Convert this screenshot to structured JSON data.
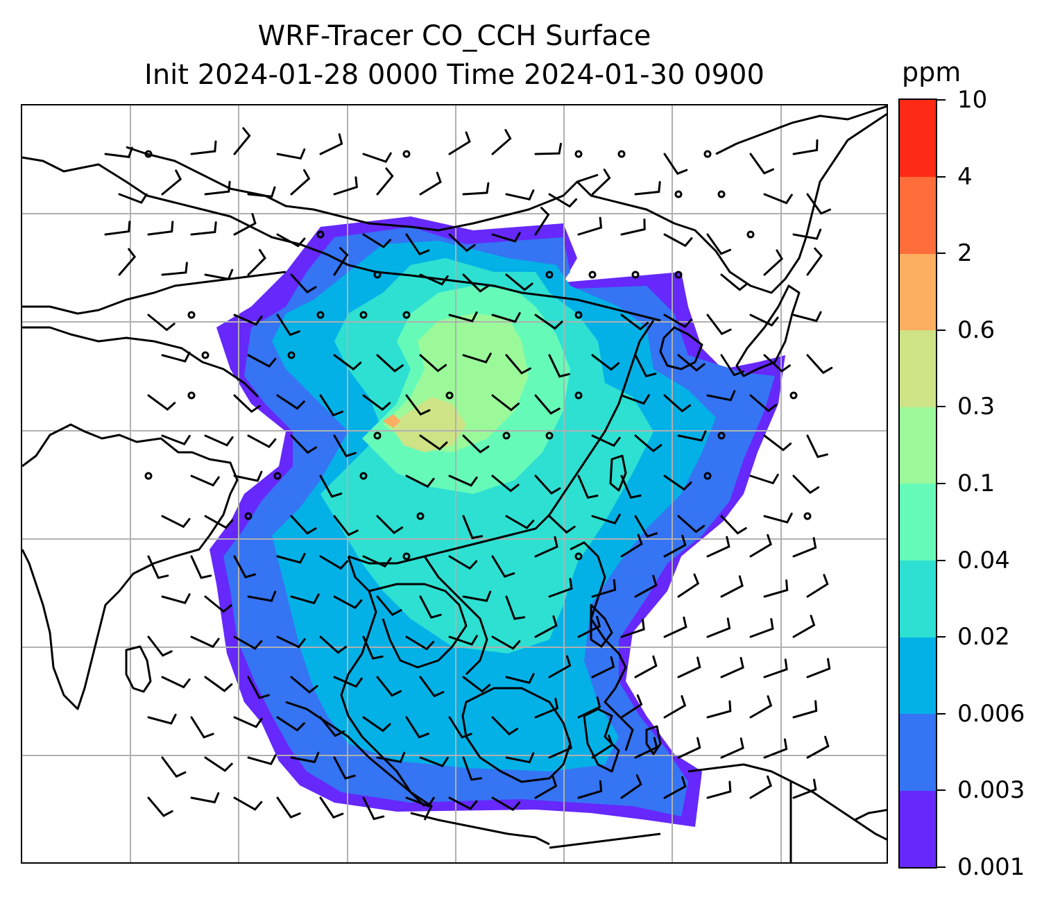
{
  "title_line1": "WRF-Tracer CO_CCH Surface",
  "title_line2": "Init 2024-01-28 0000 Time 2024-01-30 0900",
  "colorbar": {
    "unit": "ppm",
    "levels": [
      "0.001",
      "0.003",
      "0.006",
      "0.02",
      "0.04",
      "0.1",
      "0.3",
      "0.6",
      "2",
      "4",
      "10"
    ],
    "colors": [
      "#6628fb",
      "#3574f3",
      "#04b1e6",
      "#2ee0d2",
      "#66fab9",
      "#9bf99a",
      "#cde386",
      "#fdae61",
      "#ff6d3b",
      "#ff2a16"
    ]
  },
  "map": {
    "variable": "CO_CCH tracer concentration at surface",
    "overlays": [
      "coastlines",
      "gridlines",
      "wind-barbs"
    ],
    "colors": {
      "coastline": "#000000",
      "gridline": "#b0b0b0",
      "background": "#ffffff"
    }
  }
}
